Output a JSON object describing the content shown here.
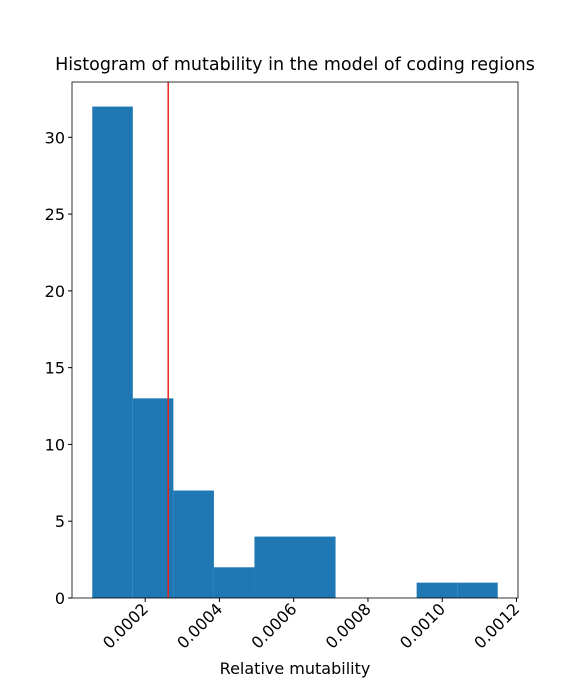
{
  "chart_data": {
    "type": "histogram",
    "title": "Histogram of mutability in the model of coding regions",
    "xlabel": "Relative mutability",
    "bins": [
      5.75e-05,
      0.0001667,
      0.0002759,
      0.0003851,
      0.0004943,
      0.0006035,
      0.0007127,
      0.0008219,
      0.0009311,
      0.0010403,
      0.0011495
    ],
    "values": [
      32,
      13,
      7,
      2,
      4,
      4,
      0,
      0,
      1,
      1
    ],
    "color": "#1f77b4",
    "vline": {
      "value": 0.000262,
      "color": "#e8221c"
    },
    "xlim": [
      2.9e-06,
      0.0012041
    ],
    "xticks": [
      0.0002,
      0.0004,
      0.0006,
      0.0008,
      {
        "value": 0.001,
        "label": "0.0010"
      },
      0.0012
    ],
    "ylim": [
      0,
      33.6
    ],
    "yticks": [
      0,
      5,
      10,
      15,
      20,
      25,
      30
    ]
  }
}
